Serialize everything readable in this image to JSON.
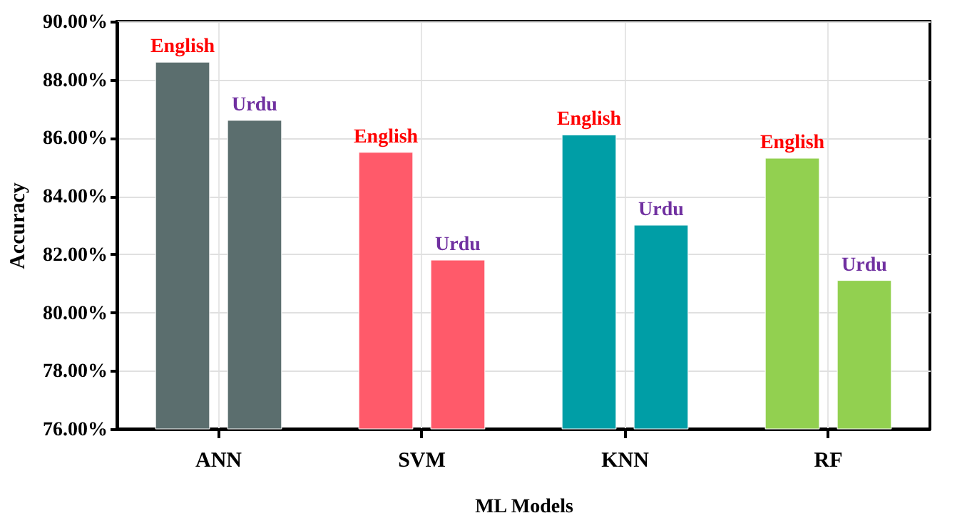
{
  "chart_data": {
    "type": "bar",
    "xlabel": "ML Models",
    "ylabel": "Accuracy",
    "categories": [
      "ANN",
      "SVM",
      "KNN",
      "RF"
    ],
    "series": [
      {
        "name": "English",
        "colors": [
          "#5b6e6e",
          "#ff5a6a",
          "#009ea6",
          "#92d050"
        ],
        "values": [
          88.6,
          85.5,
          86.1,
          85.3
        ]
      },
      {
        "name": "Urdu",
        "colors": [
          "#5b6e6e",
          "#ff5a6a",
          "#009ea6",
          "#92d050"
        ],
        "values": [
          86.6,
          81.8,
          83.0,
          81.1
        ]
      }
    ],
    "ylim": [
      76,
      90
    ],
    "yticks": [
      {
        "value": 76,
        "label": "76.00%"
      },
      {
        "value": 78,
        "label": "78.00%"
      },
      {
        "value": 80,
        "label": "80.00%"
      },
      {
        "value": 82,
        "label": "82.00%"
      },
      {
        "value": 84,
        "label": "84.00%"
      },
      {
        "value": 86,
        "label": "86.00%"
      },
      {
        "value": 88,
        "label": "88.00%"
      },
      {
        "value": 90,
        "label": "90.00%"
      }
    ],
    "grid": true
  }
}
